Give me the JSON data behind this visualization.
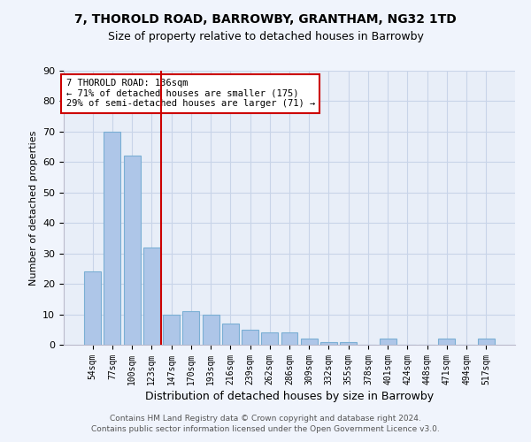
{
  "title1": "7, THOROLD ROAD, BARROWBY, GRANTHAM, NG32 1TD",
  "title2": "Size of property relative to detached houses in Barrowby",
  "xlabel": "Distribution of detached houses by size in Barrowby",
  "ylabel": "Number of detached properties",
  "categories": [
    "54sqm",
    "77sqm",
    "100sqm",
    "123sqm",
    "147sqm",
    "170sqm",
    "193sqm",
    "216sqm",
    "239sqm",
    "262sqm",
    "286sqm",
    "309sqm",
    "332sqm",
    "355sqm",
    "378sqm",
    "401sqm",
    "424sqm",
    "448sqm",
    "471sqm",
    "494sqm",
    "517sqm"
  ],
  "values": [
    24,
    70,
    62,
    32,
    10,
    11,
    10,
    7,
    5,
    4,
    4,
    2,
    1,
    1,
    0,
    2,
    0,
    0,
    2,
    0,
    2
  ],
  "bar_color": "#aec6e8",
  "bar_edge_color": "#7aafd4",
  "vline_x": 3.5,
  "vline_color": "#cc0000",
  "annotation_text": "7 THOROLD ROAD: 136sqm\n← 71% of detached houses are smaller (175)\n29% of semi-detached houses are larger (71) →",
  "annotation_box_color": "#ffffff",
  "annotation_box_edge": "#cc0000",
  "ylim": [
    0,
    90
  ],
  "yticks": [
    0,
    10,
    20,
    30,
    40,
    50,
    60,
    70,
    80,
    90
  ],
  "grid_color": "#c8d4e8",
  "bg_color": "#e8eef8",
  "fig_color": "#f0f4fc",
  "footer": "Contains HM Land Registry data © Crown copyright and database right 2024.\nContains public sector information licensed under the Open Government Licence v3.0."
}
